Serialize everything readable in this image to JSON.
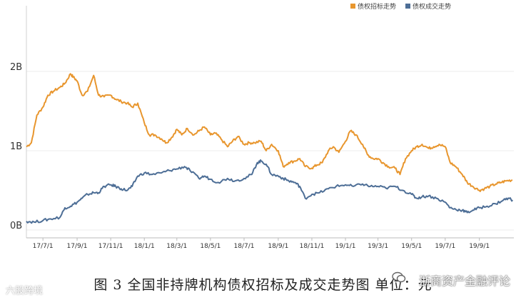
{
  "chart_data": {
    "type": "line",
    "title": "",
    "xlabel": "",
    "ylabel": "",
    "ylim": [
      0,
      2.0
    ],
    "yticks": [
      {
        "value": 0,
        "label": "0B"
      },
      {
        "value": 1,
        "label": "1B"
      },
      {
        "value": 2,
        "label": "2B"
      }
    ],
    "xticks": [
      "17/7/1",
      "17/9/1",
      "17/11/1",
      "18/1/1",
      "18/3/1",
      "18/5/1",
      "18/7/1",
      "18/9/1",
      "18/11/1",
      "19/1/1",
      "19/3/1",
      "19/5/1",
      "19/7/1",
      "19/9/1"
    ],
    "legend_position": "top-right",
    "grid": "horizontal",
    "series": [
      {
        "name": "债权招标走势",
        "color": "#e8962e",
        "points": [
          [
            "2017-06-01",
            1.05
          ],
          [
            "2017-06-10",
            1.1
          ],
          [
            "2017-06-20",
            1.45
          ],
          [
            "2017-07-01",
            1.55
          ],
          [
            "2017-07-10",
            1.7
          ],
          [
            "2017-07-20",
            1.75
          ],
          [
            "2017-08-01",
            1.8
          ],
          [
            "2017-08-10",
            1.85
          ],
          [
            "2017-08-20",
            1.97
          ],
          [
            "2017-08-25",
            1.93
          ],
          [
            "2017-09-01",
            1.88
          ],
          [
            "2017-09-10",
            1.7
          ],
          [
            "2017-09-20",
            1.75
          ],
          [
            "2017-10-01",
            1.95
          ],
          [
            "2017-10-10",
            1.7
          ],
          [
            "2017-10-20",
            1.68
          ],
          [
            "2017-11-01",
            1.7
          ],
          [
            "2017-11-10",
            1.65
          ],
          [
            "2017-11-20",
            1.62
          ],
          [
            "2017-12-01",
            1.6
          ],
          [
            "2017-12-10",
            1.55
          ],
          [
            "2017-12-20",
            1.6
          ],
          [
            "2018-01-01",
            1.35
          ],
          [
            "2018-01-10",
            1.2
          ],
          [
            "2018-01-20",
            1.2
          ],
          [
            "2018-02-01",
            1.15
          ],
          [
            "2018-02-10",
            1.1
          ],
          [
            "2018-02-20",
            1.17
          ],
          [
            "2018-03-01",
            1.27
          ],
          [
            "2018-03-10",
            1.2
          ],
          [
            "2018-03-20",
            1.28
          ],
          [
            "2018-04-01",
            1.2
          ],
          [
            "2018-04-10",
            1.25
          ],
          [
            "2018-04-20",
            1.3
          ],
          [
            "2018-05-01",
            1.2
          ],
          [
            "2018-05-10",
            1.22
          ],
          [
            "2018-05-20",
            1.15
          ],
          [
            "2018-06-01",
            1.05
          ],
          [
            "2018-06-10",
            1.12
          ],
          [
            "2018-06-20",
            1.18
          ],
          [
            "2018-07-01",
            1.08
          ],
          [
            "2018-07-10",
            1.1
          ],
          [
            "2018-07-20",
            1.1
          ],
          [
            "2018-08-01",
            1.12
          ],
          [
            "2018-08-10",
            1.0
          ],
          [
            "2018-08-20",
            1.08
          ],
          [
            "2018-09-01",
            1.0
          ],
          [
            "2018-09-10",
            0.8
          ],
          [
            "2018-09-20",
            0.85
          ],
          [
            "2018-10-01",
            0.87
          ],
          [
            "2018-10-10",
            0.9
          ],
          [
            "2018-10-20",
            0.8
          ],
          [
            "2018-11-01",
            0.78
          ],
          [
            "2018-11-10",
            0.82
          ],
          [
            "2018-11-20",
            0.85
          ],
          [
            "2018-12-01",
            1.0
          ],
          [
            "2018-12-10",
            1.05
          ],
          [
            "2018-12-20",
            0.98
          ],
          [
            "2019-01-01",
            1.12
          ],
          [
            "2019-01-10",
            1.25
          ],
          [
            "2019-01-20",
            1.2
          ],
          [
            "2019-02-01",
            1.08
          ],
          [
            "2019-02-10",
            0.95
          ],
          [
            "2019-02-20",
            0.9
          ],
          [
            "2019-03-01",
            0.9
          ],
          [
            "2019-03-10",
            0.85
          ],
          [
            "2019-03-20",
            0.8
          ],
          [
            "2019-04-01",
            0.78
          ],
          [
            "2019-04-10",
            0.7
          ],
          [
            "2019-04-20",
            0.9
          ],
          [
            "2019-05-01",
            1.0
          ],
          [
            "2019-05-10",
            1.05
          ],
          [
            "2019-05-20",
            1.08
          ],
          [
            "2019-06-01",
            1.03
          ],
          [
            "2019-06-10",
            1.05
          ],
          [
            "2019-06-20",
            1.08
          ],
          [
            "2019-07-01",
            1.05
          ],
          [
            "2019-07-10",
            0.85
          ],
          [
            "2019-07-20",
            0.8
          ],
          [
            "2019-08-01",
            0.7
          ],
          [
            "2019-08-10",
            0.6
          ],
          [
            "2019-08-20",
            0.55
          ],
          [
            "2019-09-01",
            0.5
          ],
          [
            "2019-09-10",
            0.52
          ],
          [
            "2019-09-20",
            0.55
          ],
          [
            "2019-10-01",
            0.58
          ],
          [
            "2019-10-10",
            0.6
          ],
          [
            "2019-10-20",
            0.62
          ],
          [
            "2019-10-31",
            0.63
          ]
        ]
      },
      {
        "name": "债权成交走势",
        "color": "#4d6e96",
        "points": [
          [
            "2017-06-01",
            0.11
          ],
          [
            "2017-06-15",
            0.1
          ],
          [
            "2017-07-01",
            0.12
          ],
          [
            "2017-07-15",
            0.14
          ],
          [
            "2017-08-01",
            0.16
          ],
          [
            "2017-08-10",
            0.28
          ],
          [
            "2017-08-20",
            0.3
          ],
          [
            "2017-09-01",
            0.35
          ],
          [
            "2017-09-10",
            0.4
          ],
          [
            "2017-09-20",
            0.45
          ],
          [
            "2017-10-01",
            0.47
          ],
          [
            "2017-10-10",
            0.47
          ],
          [
            "2017-10-20",
            0.55
          ],
          [
            "2017-11-01",
            0.57
          ],
          [
            "2017-11-10",
            0.55
          ],
          [
            "2017-11-20",
            0.52
          ],
          [
            "2017-12-01",
            0.5
          ],
          [
            "2017-12-10",
            0.55
          ],
          [
            "2017-12-20",
            0.68
          ],
          [
            "2018-01-01",
            0.72
          ],
          [
            "2018-01-15",
            0.7
          ],
          [
            "2018-02-01",
            0.72
          ],
          [
            "2018-02-15",
            0.75
          ],
          [
            "2018-03-01",
            0.77
          ],
          [
            "2018-03-15",
            0.8
          ],
          [
            "2018-03-25",
            0.75
          ],
          [
            "2018-04-10",
            0.65
          ],
          [
            "2018-04-20",
            0.68
          ],
          [
            "2018-05-01",
            0.64
          ],
          [
            "2018-05-15",
            0.6
          ],
          [
            "2018-06-01",
            0.65
          ],
          [
            "2018-06-15",
            0.62
          ],
          [
            "2018-07-01",
            0.65
          ],
          [
            "2018-07-15",
            0.7
          ],
          [
            "2018-07-25",
            0.85
          ],
          [
            "2018-08-01",
            0.87
          ],
          [
            "2018-08-10",
            0.83
          ],
          [
            "2018-08-20",
            0.7
          ],
          [
            "2018-09-01",
            0.68
          ],
          [
            "2018-09-10",
            0.65
          ],
          [
            "2018-09-20",
            0.62
          ],
          [
            "2018-10-01",
            0.6
          ],
          [
            "2018-10-10",
            0.55
          ],
          [
            "2018-10-20",
            0.4
          ],
          [
            "2018-11-01",
            0.45
          ],
          [
            "2018-11-15",
            0.47
          ],
          [
            "2018-12-01",
            0.52
          ],
          [
            "2018-12-15",
            0.55
          ],
          [
            "2019-01-01",
            0.57
          ],
          [
            "2019-01-15",
            0.55
          ],
          [
            "2019-02-01",
            0.58
          ],
          [
            "2019-02-15",
            0.55
          ],
          [
            "2019-03-01",
            0.55
          ],
          [
            "2019-03-15",
            0.53
          ],
          [
            "2019-04-01",
            0.55
          ],
          [
            "2019-04-15",
            0.5
          ],
          [
            "2019-05-01",
            0.45
          ],
          [
            "2019-05-10",
            0.4
          ],
          [
            "2019-05-20",
            0.42
          ],
          [
            "2019-06-01",
            0.43
          ],
          [
            "2019-06-15",
            0.4
          ],
          [
            "2019-07-01",
            0.35
          ],
          [
            "2019-07-10",
            0.28
          ],
          [
            "2019-07-20",
            0.26
          ],
          [
            "2019-08-01",
            0.25
          ],
          [
            "2019-08-10",
            0.22
          ],
          [
            "2019-08-20",
            0.25
          ],
          [
            "2019-09-01",
            0.28
          ],
          [
            "2019-09-15",
            0.3
          ],
          [
            "2019-10-01",
            0.33
          ],
          [
            "2019-10-15",
            0.38
          ],
          [
            "2019-10-25",
            0.4
          ],
          [
            "2019-10-31",
            0.38
          ]
        ]
      }
    ]
  },
  "caption": "图 3  全国非持牌机构债权招标及成交走势图  单位：元",
  "brand": "浙商资产金融评论",
  "watermark": "六股跨境"
}
